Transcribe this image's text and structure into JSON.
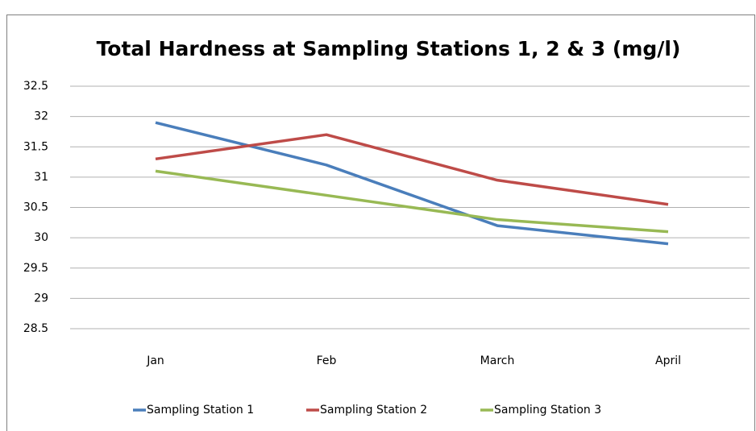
{
  "chart_data": {
    "type": "line",
    "title": "Total Hardness at Sampling Stations 1, 2 & 3 (mg/l)",
    "categories": [
      "Jan",
      "Feb",
      "March",
      "April"
    ],
    "series": [
      {
        "name": "Sampling Station 1",
        "color": "#4a7ebb",
        "values": [
          31.9,
          31.2,
          30.2,
          29.9
        ]
      },
      {
        "name": "Sampling Station 2",
        "color": "#be4b48",
        "values": [
          31.3,
          31.7,
          30.95,
          30.55
        ]
      },
      {
        "name": "Sampling Station 3",
        "color": "#98b954",
        "values": [
          31.1,
          30.7,
          30.3,
          30.1
        ]
      }
    ],
    "ylim": [
      28.5,
      32.5
    ],
    "yticks": [
      28.5,
      29,
      29.5,
      30,
      30.5,
      31,
      31.5,
      32,
      32.5
    ],
    "grid": true,
    "legend": "bottom"
  }
}
